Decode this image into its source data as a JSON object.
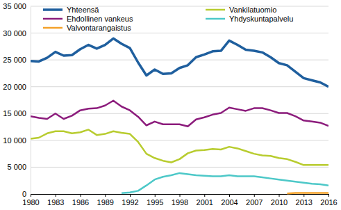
{
  "chart_data": {
    "type": "line",
    "x": [
      1980,
      1981,
      1982,
      1983,
      1984,
      1985,
      1986,
      1987,
      1988,
      1989,
      1990,
      1991,
      1992,
      1993,
      1994,
      1995,
      1996,
      1997,
      1998,
      1999,
      2000,
      2001,
      2002,
      2003,
      2004,
      2005,
      2006,
      2007,
      2008,
      2009,
      2010,
      2011,
      2012,
      2013,
      2014,
      2015,
      2016
    ],
    "series": [
      {
        "name": "Yhteensä",
        "color": "#1f5f9e",
        "values": [
          24800,
          24700,
          25400,
          26500,
          25800,
          25900,
          27000,
          27800,
          27100,
          27800,
          29000,
          28000,
          27200,
          24500,
          22100,
          23200,
          22400,
          22500,
          23500,
          24000,
          25500,
          26000,
          26600,
          26700,
          28600,
          27800,
          26900,
          26700,
          26400,
          25500,
          24400,
          24000,
          22800,
          21600,
          21200,
          20800,
          20000
        ]
      },
      {
        "name": "Vankilatuomio",
        "color": "#b8cc2f",
        "values": [
          10300,
          10500,
          11300,
          11700,
          11700,
          11300,
          11500,
          12000,
          11000,
          11200,
          11700,
          11400,
          11200,
          9700,
          7500,
          6700,
          6200,
          5900,
          6500,
          7600,
          8100,
          8200,
          8400,
          8300,
          8800,
          8500,
          8000,
          7500,
          7200,
          7100,
          6700,
          6500,
          6000,
          5400,
          5400,
          5400,
          5400
        ]
      },
      {
        "name": "Ehdollinen vankeus",
        "color": "#8c1c7c",
        "values": [
          14500,
          14200,
          14000,
          15000,
          14000,
          14600,
          15600,
          15900,
          16000,
          16500,
          17400,
          16300,
          15600,
          14400,
          12800,
          13500,
          13000,
          13000,
          13000,
          12600,
          13900,
          14300,
          14800,
          15100,
          16100,
          15800,
          15500,
          16000,
          16000,
          15600,
          15100,
          15100,
          14500,
          13700,
          13500,
          13300,
          12700
        ]
      },
      {
        "name": "Yhdyskuntapalvelu",
        "color": "#4dc8c8",
        "values": [
          null,
          null,
          null,
          null,
          null,
          null,
          null,
          null,
          null,
          null,
          null,
          150,
          300,
          600,
          1600,
          2700,
          3200,
          3500,
          3900,
          3700,
          3500,
          3400,
          3300,
          3300,
          3500,
          3300,
          3300,
          3300,
          3100,
          2900,
          2700,
          2500,
          2300,
          2100,
          1900,
          1800,
          1600
        ]
      },
      {
        "name": "Valvontarangaistus",
        "color": "#f4a12a",
        "values": [
          null,
          null,
          null,
          null,
          null,
          null,
          null,
          null,
          null,
          null,
          null,
          null,
          null,
          null,
          null,
          null,
          null,
          null,
          null,
          null,
          null,
          null,
          null,
          null,
          null,
          null,
          null,
          null,
          null,
          null,
          null,
          100,
          200,
          200,
          200,
          200,
          200
        ]
      }
    ],
    "xlim": [
      1980,
      2016
    ],
    "xticks": [
      1980,
      1983,
      1986,
      1989,
      1992,
      1995,
      1998,
      2001,
      2004,
      2007,
      2010,
      2013,
      2016
    ],
    "ylim": [
      0,
      35000
    ],
    "yticks": [
      0,
      {
        "value": 5000,
        "label": "5 000"
      },
      {
        "value": 10000,
        "label": "10 000"
      },
      {
        "value": 15000,
        "label": "15 000"
      },
      {
        "value": 20000,
        "label": "20 000"
      },
      {
        "value": 25000,
        "label": "25 000"
      },
      {
        "value": 30000,
        "label": "30 000"
      },
      {
        "value": 35000,
        "label": "35 000"
      }
    ],
    "grid": true,
    "legend": "top"
  }
}
